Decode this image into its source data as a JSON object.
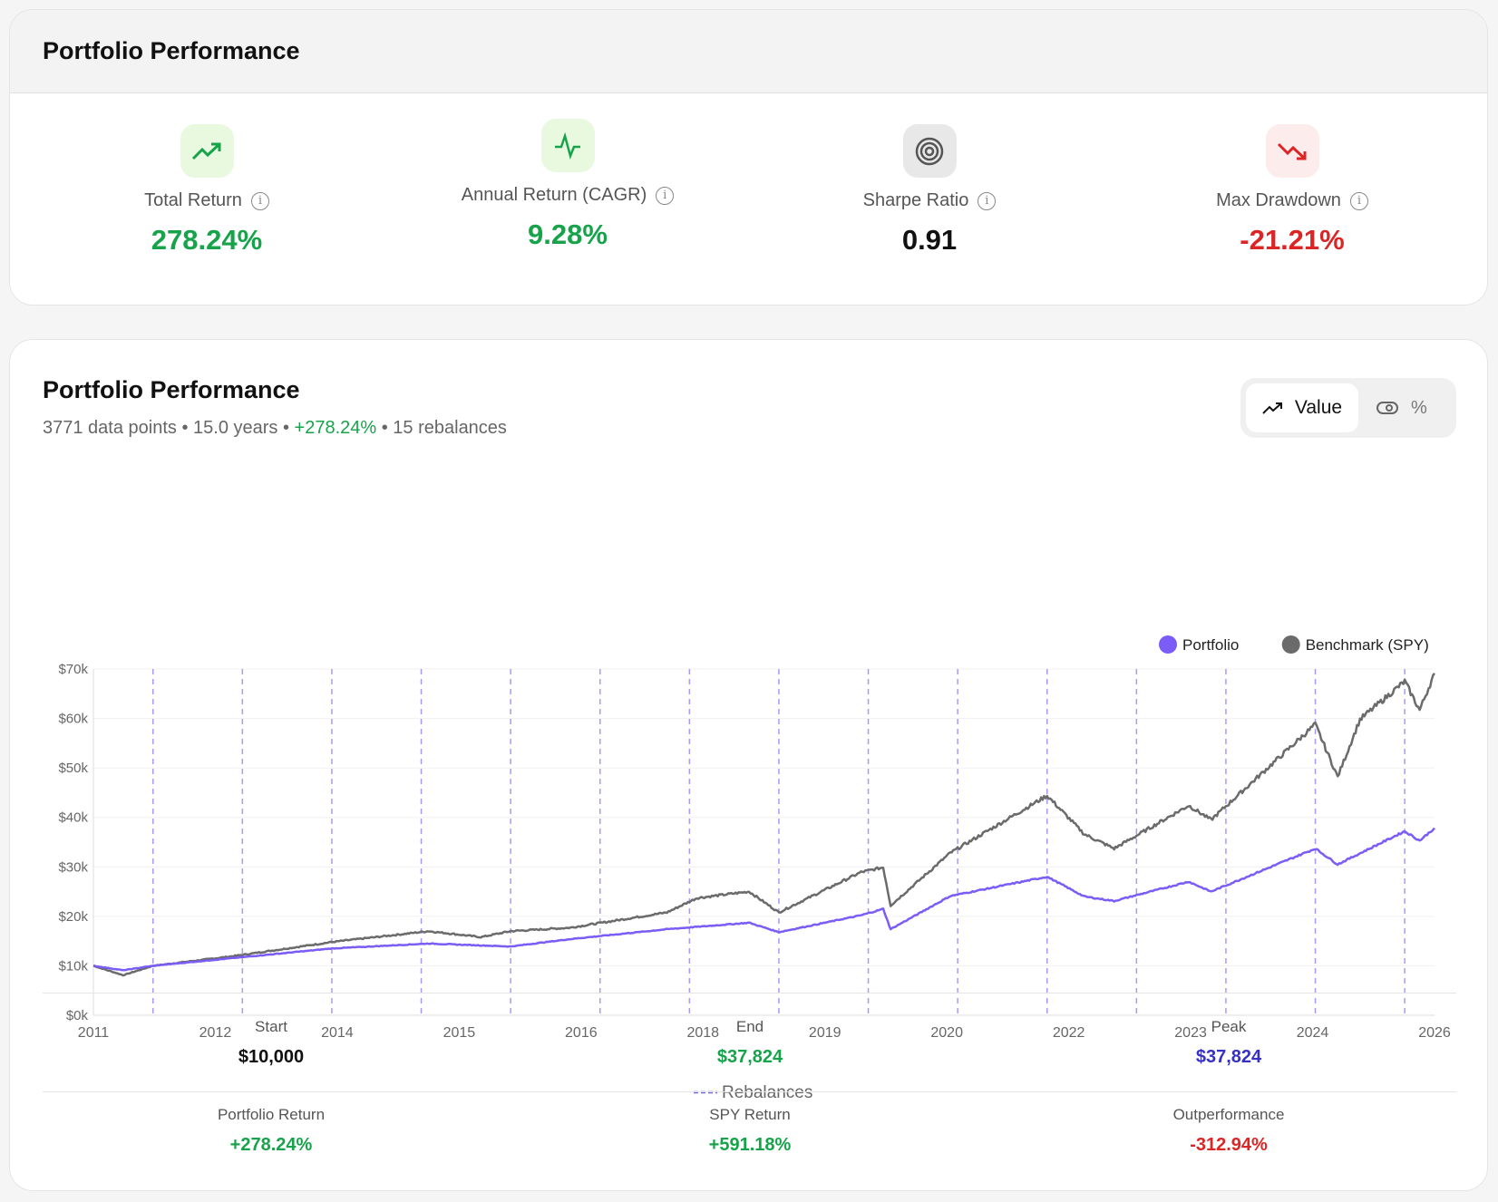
{
  "header": {
    "title": "Portfolio Performance"
  },
  "metrics": [
    {
      "label": "Total Return",
      "value": "278.24%",
      "icon": "trending-up-icon",
      "color": "#16a34a",
      "bg": "#e8f9e0"
    },
    {
      "label": "Annual Return (CAGR)",
      "value": "9.28%",
      "icon": "activity-icon",
      "color": "#16a34a",
      "bg": "#e8f9e0"
    },
    {
      "label": "Sharpe Ratio",
      "value": "0.91",
      "icon": "target-icon",
      "color": "#111111",
      "bg": "#e8e8e8"
    },
    {
      "label": "Max Drawdown",
      "value": "-21.21%",
      "icon": "trending-down-icon",
      "color": "#dc2626",
      "bg": "#fdecec"
    }
  ],
  "chart_card": {
    "title": "Portfolio Performance",
    "subtitle_main": "3771 data points • 15.0 years • ",
    "subtitle_return": "+278.24%",
    "subtitle_rebal": " • 15 rebalances",
    "toggle": {
      "value_label": "Value",
      "percent_label": "%",
      "selected": "Value"
    }
  },
  "chart_data": {
    "type": "line",
    "ylim": [
      0,
      70000
    ],
    "yticks": [
      "$0k",
      "$10k",
      "$20k",
      "$30k",
      "$40k",
      "$50k",
      "$60k",
      "$70k"
    ],
    "xlim": [
      "2011-01",
      "2026-01"
    ],
    "xtick_labels": [
      "2011",
      "2012",
      "2014",
      "2015",
      "2016",
      "2018",
      "2019",
      "2020",
      "2022",
      "2023",
      "2024",
      "2026"
    ],
    "grid": true,
    "legend": "top-right",
    "series": [
      {
        "name": "Portfolio",
        "color": "#7c5cf6",
        "points": [
          [
            "2011-01",
            10000
          ],
          [
            "2011-05",
            9100
          ],
          [
            "2011-09",
            10000
          ],
          [
            "2012-08",
            11600
          ],
          [
            "2013-09",
            13500
          ],
          [
            "2014-10",
            14500
          ],
          [
            "2015-09",
            13900
          ],
          [
            "2016-05",
            15400
          ],
          [
            "2017-06",
            17400
          ],
          [
            "2018-05",
            18700
          ],
          [
            "2018-09",
            16800
          ],
          [
            "2019-08",
            20200
          ],
          [
            "2019-11",
            21500
          ],
          [
            "2019-12",
            17400
          ],
          [
            "2020-08",
            24100
          ],
          [
            "2021-09",
            28000
          ],
          [
            "2022-02",
            24000
          ],
          [
            "2022-06",
            23100
          ],
          [
            "2023-04",
            27000
          ],
          [
            "2023-07",
            25000
          ],
          [
            "2024-09",
            33700
          ],
          [
            "2024-12",
            30500
          ],
          [
            "2025-09",
            37200
          ],
          [
            "2025-11",
            35300
          ],
          [
            "2026-01",
            37824
          ]
        ]
      },
      {
        "name": "Benchmark (SPY)",
        "color": "#6b6b6b",
        "points": [
          [
            "2011-01",
            10000
          ],
          [
            "2011-05",
            8100
          ],
          [
            "2011-09",
            10000
          ],
          [
            "2012-08",
            12000
          ],
          [
            "2013-09",
            14800
          ],
          [
            "2014-10",
            17000
          ],
          [
            "2015-05",
            15800
          ],
          [
            "2015-09",
            17000
          ],
          [
            "2016-05",
            17700
          ],
          [
            "2017-06",
            20800
          ],
          [
            "2017-10",
            23700
          ],
          [
            "2018-05",
            25000
          ],
          [
            "2018-09",
            20800
          ],
          [
            "2019-08",
            28900
          ],
          [
            "2019-11",
            29900
          ],
          [
            "2019-12",
            22200
          ],
          [
            "2020-08",
            32800
          ],
          [
            "2021-09",
            44400
          ],
          [
            "2022-02",
            36600
          ],
          [
            "2022-06",
            33700
          ],
          [
            "2023-04",
            42400
          ],
          [
            "2023-07",
            39500
          ],
          [
            "2024-09",
            58800
          ],
          [
            "2024-12",
            48200
          ],
          [
            "2025-03",
            59800
          ],
          [
            "2025-09",
            67500
          ],
          [
            "2025-11",
            61700
          ],
          [
            "2026-01",
            69118
          ]
        ]
      }
    ],
    "rebalances": [
      "2011-09",
      "2012-09",
      "2013-09",
      "2014-09",
      "2015-09",
      "2016-09",
      "2017-09",
      "2018-09",
      "2019-09",
      "2020-09",
      "2021-09",
      "2022-09",
      "2023-09",
      "2024-09",
      "2025-09"
    ],
    "rebalance_label": "Rebalances",
    "rebalance_color": "#a99bf5"
  },
  "stats": [
    {
      "label": "Start",
      "value": "$10,000",
      "color": "#111111"
    },
    {
      "label": "End",
      "value": "$37,824",
      "color": "#16a34a"
    },
    {
      "label": "Peak",
      "value": "$37,824",
      "color": "#3730c4"
    },
    {
      "label": "Portfolio Return",
      "value": "+278.24%",
      "color": "#16a34a"
    },
    {
      "label": "SPY Return",
      "value": "+591.18%",
      "color": "#16a34a"
    },
    {
      "label": "Outperformance",
      "value": "-312.94%",
      "color": "#dc2626"
    }
  ]
}
